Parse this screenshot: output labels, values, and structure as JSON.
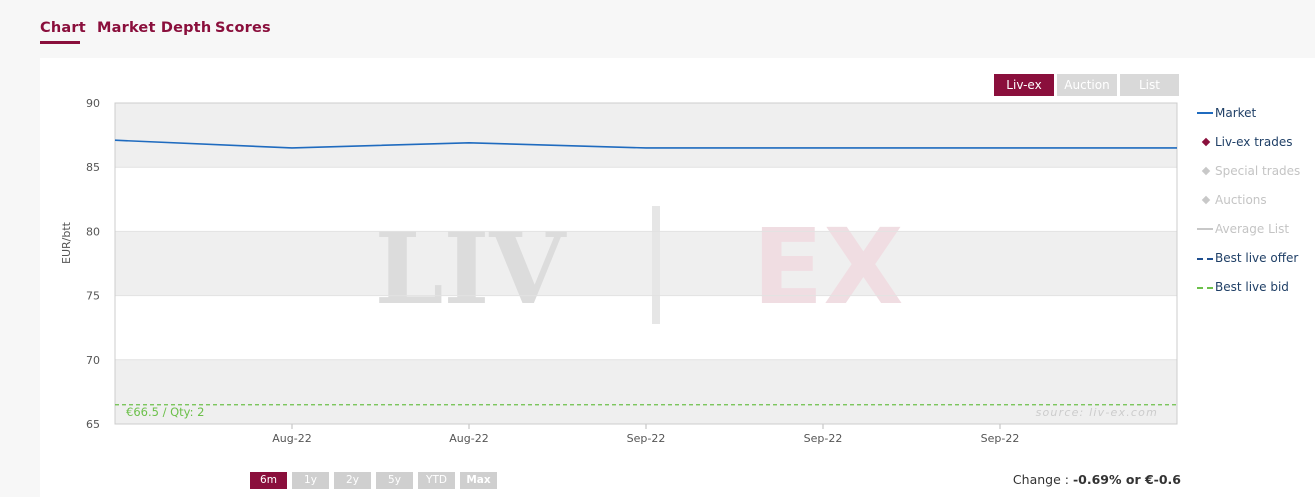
{
  "tabs": [
    {
      "label": "Chart",
      "active": true
    },
    {
      "label": "Market Depth",
      "active": false
    },
    {
      "label": "Scores",
      "active": false
    }
  ],
  "source_buttons": [
    {
      "label": "Liv-ex",
      "active": true
    },
    {
      "label": "Auction",
      "active": false
    },
    {
      "label": "List",
      "active": false
    }
  ],
  "range_buttons": [
    {
      "label": "6m",
      "active": true
    },
    {
      "label": "1y",
      "active": false
    },
    {
      "label": "2y",
      "active": false
    },
    {
      "label": "5y",
      "active": false
    },
    {
      "label": "YTD",
      "active": false
    },
    {
      "label": "Max",
      "active": false
    }
  ],
  "change": {
    "prefix": "Change : ",
    "value": "-0.69% or €-0.6"
  },
  "colors": {
    "accent": "#8a0f3c",
    "market": "#1f6bbf",
    "best_bid": "#6cc04a",
    "best_offer": "#1f4f8f",
    "disabled": "#c8c8c8"
  },
  "legend": [
    {
      "label": "Market",
      "type": "line",
      "color": "#1f6bbf",
      "enabled": true
    },
    {
      "label": "Liv-ex trades",
      "type": "diamond",
      "color": "#8a0f3c",
      "enabled": true
    },
    {
      "label": "Special trades",
      "type": "diamond",
      "color": "#c8c8c8",
      "enabled": false
    },
    {
      "label": "Auctions",
      "type": "diamond",
      "color": "#c8c8c8",
      "enabled": false
    },
    {
      "label": "Average List",
      "type": "line",
      "color": "#c8c8c8",
      "enabled": false
    },
    {
      "label": "Best live offer",
      "type": "dashed",
      "color": "#1f4f8f",
      "enabled": true
    },
    {
      "label": "Best live bid",
      "type": "dashed",
      "color": "#6cc04a",
      "enabled": true
    }
  ],
  "chart_data": {
    "type": "line",
    "ylabel": "EUR/btt",
    "ylim": [
      65,
      90
    ],
    "yticks": [
      65,
      70,
      75,
      80,
      85,
      90
    ],
    "xlim": [
      0,
      6
    ],
    "xticks": [
      {
        "x": 1,
        "label": "Aug-22"
      },
      {
        "x": 2,
        "label": "Aug-22"
      },
      {
        "x": 3,
        "label": "Sep-22"
      },
      {
        "x": 4,
        "label": "Sep-22"
      },
      {
        "x": 5,
        "label": "Sep-22"
      }
    ],
    "series": [
      {
        "name": "Market",
        "x": [
          0,
          1,
          2,
          3,
          4,
          5
        ],
        "y": [
          87.1,
          86.5,
          86.9,
          86.5,
          86.5,
          86.5
        ]
      }
    ],
    "best_live_bid": {
      "value": 66.5,
      "label": "€66.5 / Qty: 2"
    },
    "watermark": "source: liv-ex.com",
    "logo_text": {
      "left": "LIV",
      "right": "EX"
    },
    "grid": true,
    "legend_position": "right"
  }
}
